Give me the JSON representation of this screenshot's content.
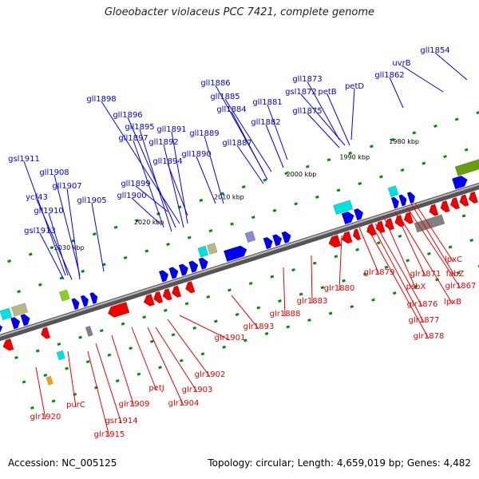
{
  "title": "Gloeobacter violaceus PCC 7421, complete genome",
  "footer": {
    "accession": "Accession: NC_005125",
    "stats": "Topology: circular; Length: 4,659,019 bp; Genes: 4,482"
  },
  "colors": {
    "forward": "#0000ee",
    "reverse": "#ee0000",
    "backbone": "#808080",
    "tick": "#0a8a0a",
    "features": [
      "#00e0e0",
      "#808080",
      "#b7b88a",
      "#88d020",
      "#6a9c10",
      "#e020a0",
      "#8a8ad0",
      "#f0a020"
    ]
  },
  "kbp_labels": [
    "1980 kbp",
    "1990 kbp",
    "2000 kbp",
    "2010 kbp",
    "2020 kbp",
    "2030 kbp"
  ],
  "forward_genes": [
    "gll1854",
    "uvrB",
    "gll1862",
    "petD",
    "gll1873",
    "gsl1872",
    "petB",
    "gll1875",
    "gll1886",
    "gll1885",
    "gll1884",
    "gll1881",
    "gll1882",
    "gll1887",
    "gll1898",
    "gll1896",
    "gll1895",
    "gll1897",
    "gll1891",
    "gll1892",
    "gll1889",
    "gll1894",
    "gll1890",
    "gsl1911",
    "gll1908",
    "gll1907",
    "ycf43",
    "gll1905",
    "gll1899",
    "gll1900",
    "gll1910",
    "gsl1913"
  ],
  "reverse_genes": [
    "lpxC",
    "fabZ",
    "glr1867",
    "glr1871",
    "lpxB",
    "psbX",
    "glr1876",
    "glr1879",
    "glr1877",
    "glr1878",
    "glr1880",
    "glr1883",
    "glr1888",
    "glr1893",
    "glr1901",
    "glr1902",
    "glr1903",
    "glr1904",
    "petJ",
    "glr1909",
    "gsr1914",
    "purC",
    "glr1915",
    "glr1920"
  ]
}
